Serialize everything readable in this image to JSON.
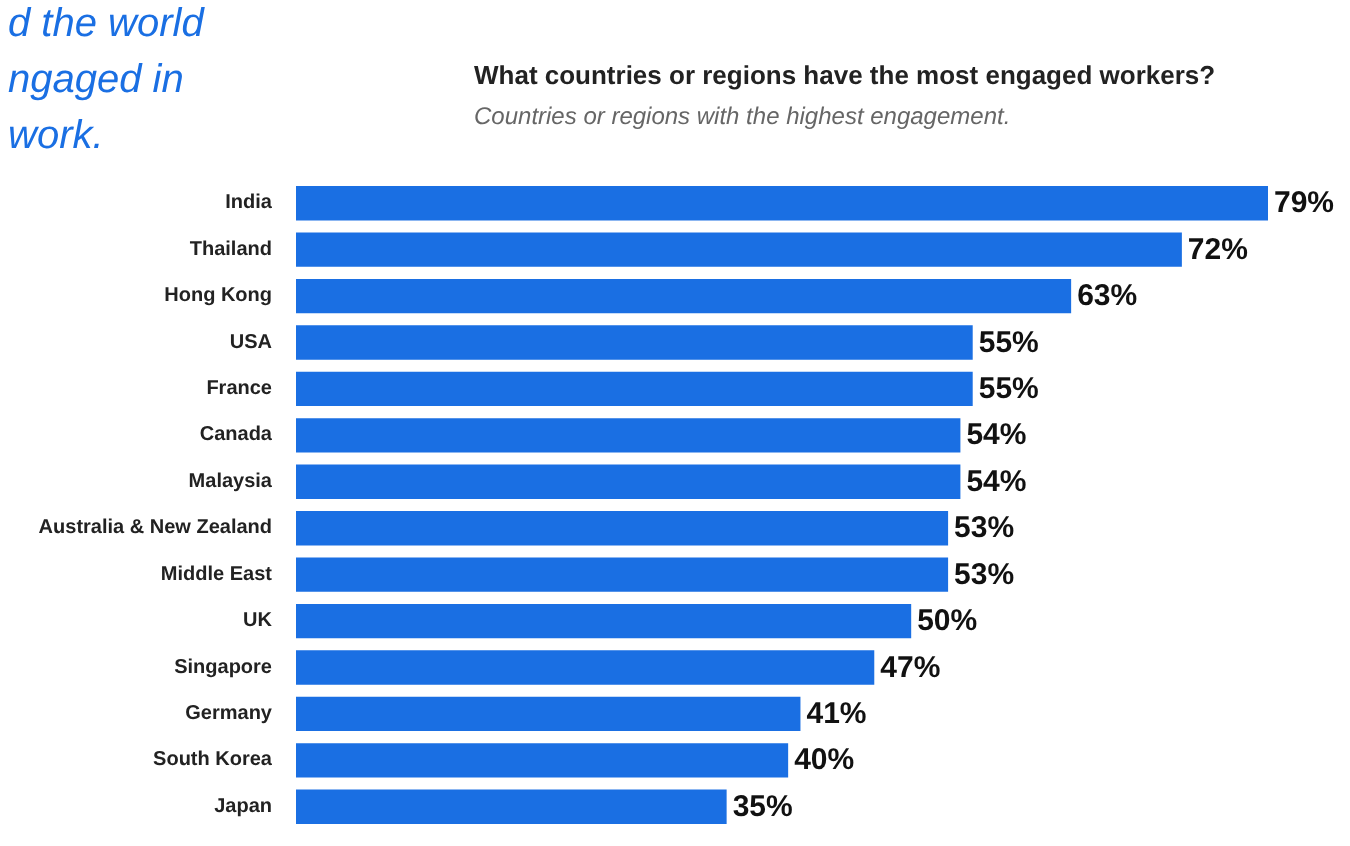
{
  "chart_data": {
    "type": "bar",
    "orientation": "horizontal",
    "title": "What countries or regions have the most engaged workers?",
    "subtitle": "Countries or regions with the highest engagement.",
    "categories": [
      "India",
      "Thailand",
      "Hong Kong",
      "USA",
      "France",
      "Canada",
      "Malaysia",
      "Australia & New Zealand",
      "Middle East",
      "UK",
      "Singapore",
      "Germany",
      "South Korea",
      "Japan"
    ],
    "values": [
      79,
      72,
      63,
      55,
      55,
      54,
      54,
      53,
      53,
      50,
      47,
      41,
      40,
      35
    ],
    "value_labels": [
      "79%",
      "72%",
      "63%",
      "55%",
      "55%",
      "54%",
      "54%",
      "53%",
      "53%",
      "50%",
      "47%",
      "41%",
      "40%",
      "35%"
    ],
    "color": "#1a6fe3",
    "annotations": [
      "d the world",
      "ngaged in",
      "work."
    ]
  }
}
